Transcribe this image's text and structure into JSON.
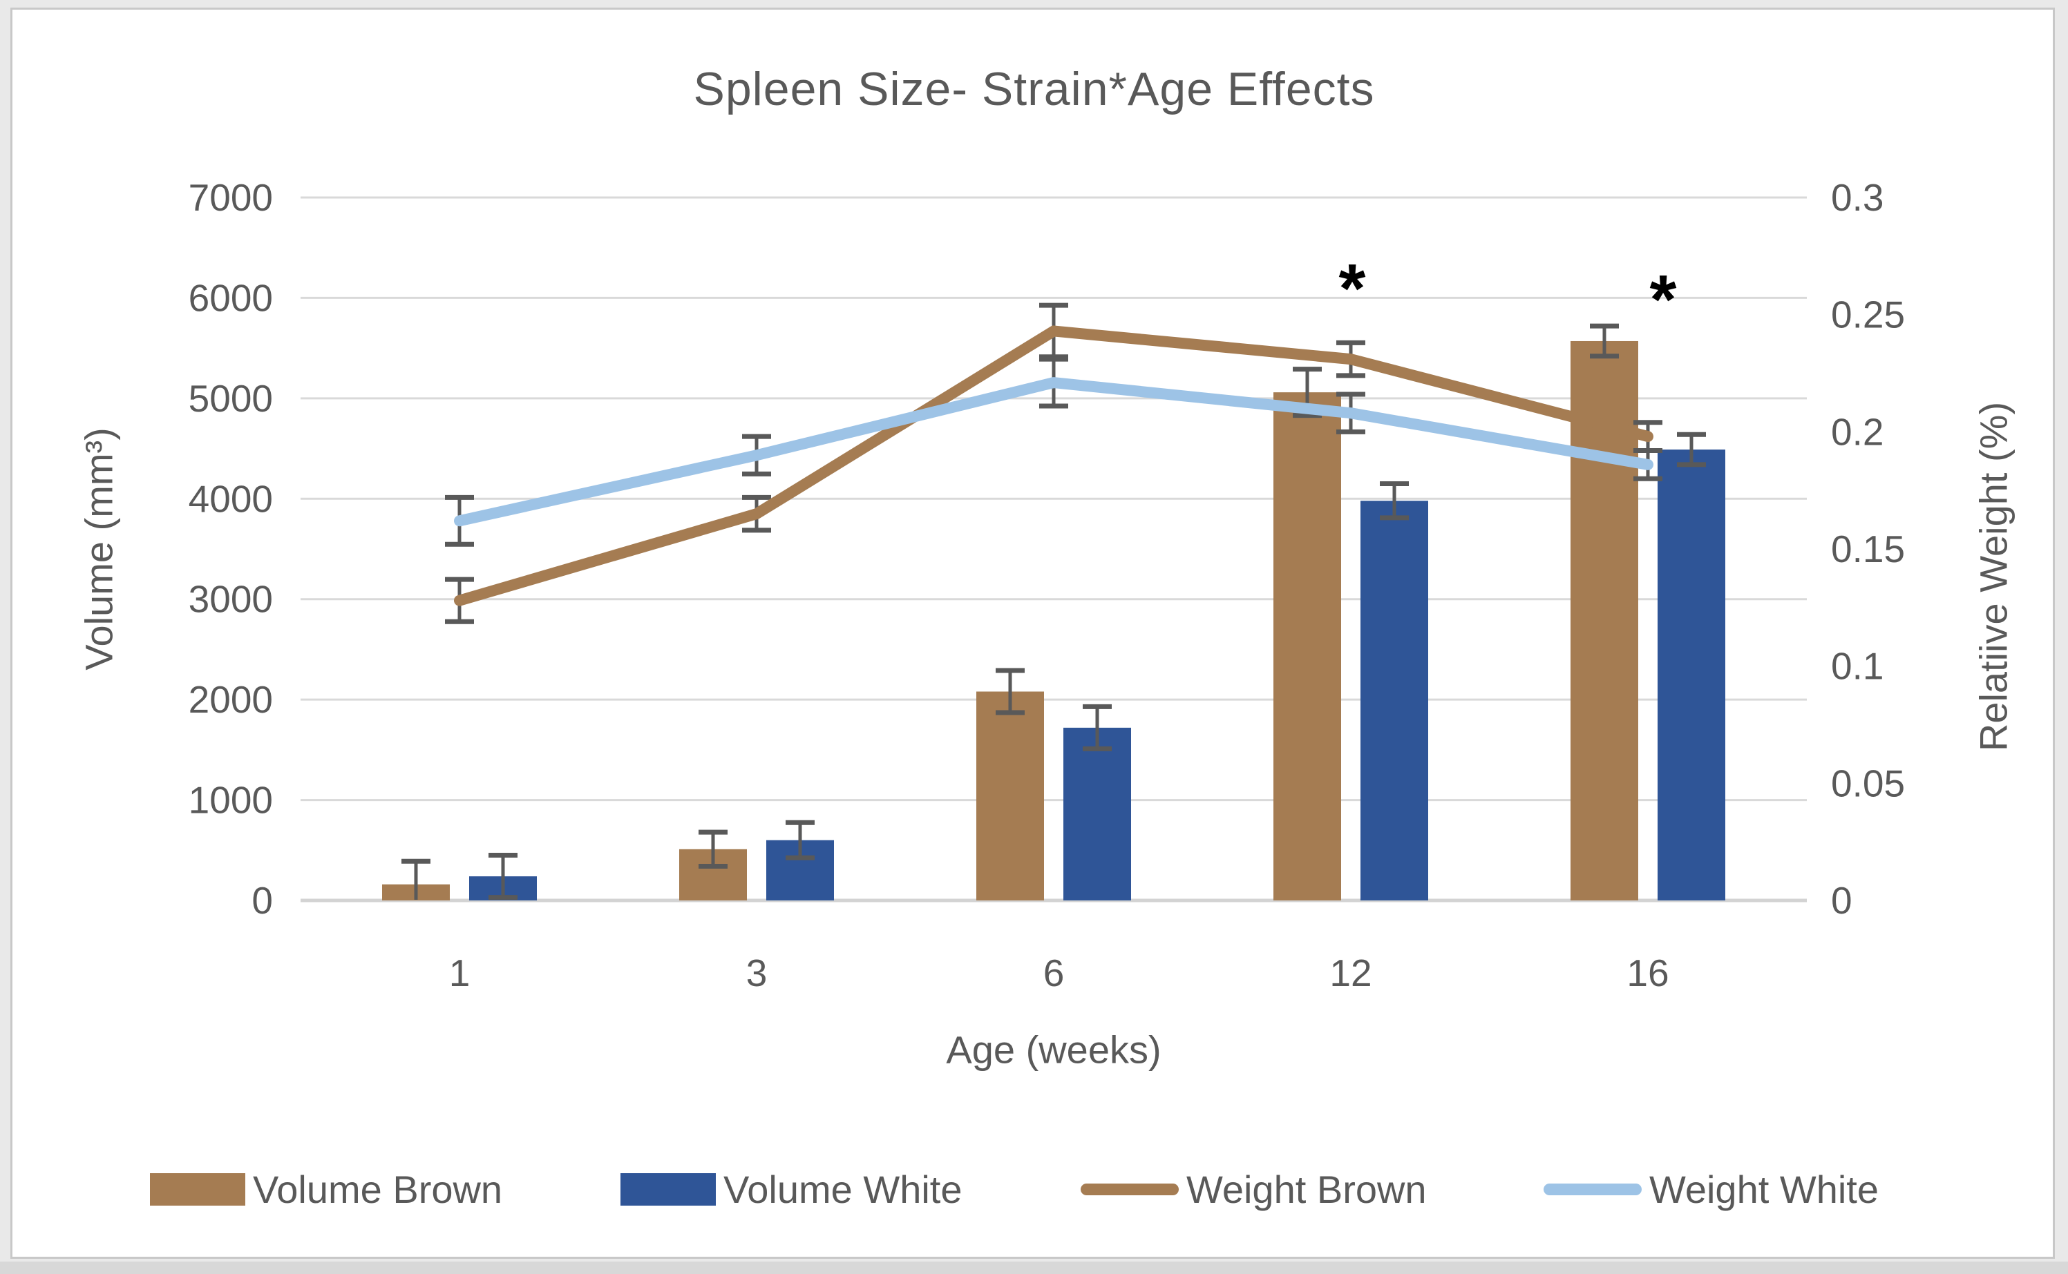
{
  "title": "Spleen Size- Strain*Age Effects",
  "chart_data": {
    "type": "combo-bar-line",
    "title": "Spleen Size- Strain*Age Effects",
    "categories": [
      "1",
      "3",
      "6",
      "12",
      "16"
    ],
    "x_axis_title": "Age (weeks)",
    "left_axis": {
      "title": "Volume (mm³)",
      "min": 0,
      "max": 7000,
      "step": 1000,
      "tick_labels": [
        "0",
        "1000",
        "2000",
        "3000",
        "4000",
        "5000",
        "6000",
        "7000"
      ]
    },
    "right_axis": {
      "title": "Relatiive Weight (%)",
      "min": 0,
      "max": 0.3,
      "step": 0.05,
      "tick_labels": [
        "0",
        "0.05",
        "0.1",
        "0.15",
        "0.2",
        "0.25",
        "0.3"
      ]
    },
    "grid": true,
    "legend_position": "bottom",
    "bar_series": [
      {
        "name": "Volume Brown",
        "axis": "left",
        "color": "#A57C52",
        "values": [
          160,
          510,
          2080,
          5060,
          5570
        ],
        "errors": [
          230,
          170,
          210,
          230,
          150
        ]
      },
      {
        "name": "Volume White",
        "axis": "left",
        "color": "#2F5597",
        "values": [
          240,
          600,
          1720,
          3980,
          4490
        ],
        "errors": [
          210,
          175,
          210,
          170,
          150
        ]
      }
    ],
    "line_series": [
      {
        "name": "Weight Brown",
        "axis": "right",
        "color": "#A57C52",
        "values": [
          0.128,
          0.165,
          0.243,
          0.231,
          0.198
        ],
        "errors": [
          0.009,
          0.007,
          0.011,
          0.007,
          0.006
        ]
      },
      {
        "name": "Weight White",
        "axis": "right",
        "color": "#9DC3E6",
        "values": [
          0.162,
          0.19,
          0.221,
          0.208,
          0.186
        ],
        "errors": [
          0.01,
          0.008,
          0.01,
          0.008,
          0.006
        ]
      }
    ],
    "annotations": [
      {
        "category": "12",
        "symbol": "*"
      },
      {
        "category": "16",
        "symbol": "*"
      }
    ]
  },
  "legend": {
    "items": [
      {
        "label": "Volume Brown",
        "swatch": "bar",
        "color": "#A57C52"
      },
      {
        "label": "Volume White",
        "swatch": "bar",
        "color": "#2F5597"
      },
      {
        "label": "Weight Brown",
        "swatch": "line",
        "color": "#A57C52"
      },
      {
        "label": "Weight White",
        "swatch": "line",
        "color": "#9DC3E6"
      }
    ]
  },
  "colors": {
    "text": "#595959",
    "gridline": "#D9D9D9",
    "baseline": "#D3D3D3",
    "error_bar": "#595959",
    "annotation": "#000000"
  }
}
